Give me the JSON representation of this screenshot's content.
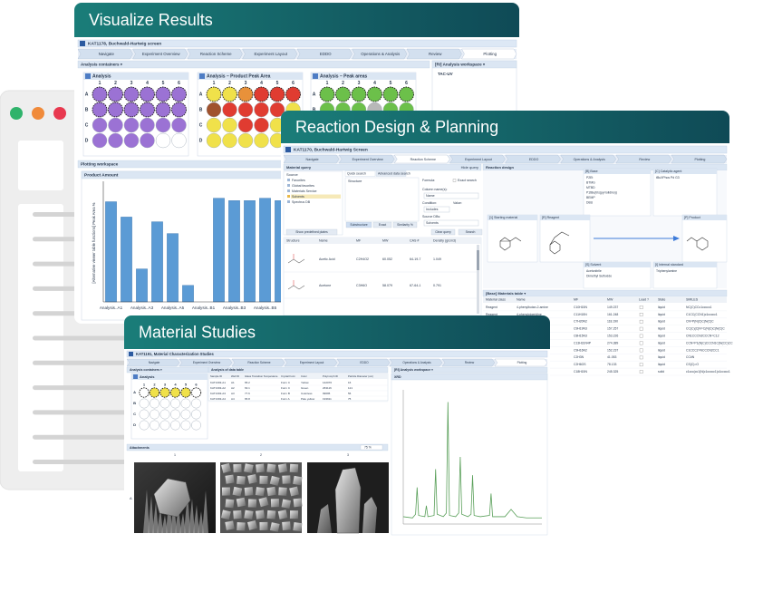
{
  "palette": {
    "p": "#9b72d4",
    "y": "#f0e14a",
    "o": "#e8913a",
    "r": "#e03c31",
    "b": "#a0522d",
    "g": "#6cc04a",
    "k": "#b8b8b8",
    "w": "#ffffff"
  },
  "cards": [
    {
      "title": "Visualize Results",
      "screen": "KAT1178, Buchwald-Hartwig screen",
      "steps": [
        "Navigate",
        "Experiment Overview",
        "Reaction Scheme",
        "Experiment Layout",
        "EDDO",
        "Operations & Analysis",
        "Review",
        "Plotting"
      ],
      "active_step": 7,
      "containers": "Analysis containers ▾",
      "workspace": "[RI] Analysis workspace ▾",
      "workspace_item": "TAC-UV",
      "columns": [
        "1",
        "2",
        "3",
        "4",
        "5",
        "6"
      ],
      "rows": [
        "A",
        "B",
        "C",
        "D"
      ],
      "plates": [
        {
          "title": "Analysis",
          "wells": [
            "pppppp",
            "pppppp",
            "pppppp",
            "pppp.."
          ],
          "selected": [
            0,
            1
          ]
        },
        {
          "title": "Analysis – Product Peak Area",
          "wells": [
            "yyorrr",
            "brrrry",
            "yyrryr",
            "yyyyyy"
          ],
          "selected": [
            0
          ]
        },
        {
          "title": "Analysis – Peak areas",
          "wells": [
            "gggggg",
            "gggkgg",
            "ggkkkk",
            "kkkkkk"
          ],
          "selected": [
            0
          ]
        }
      ],
      "plotting": "Plotting workspace",
      "chart_data": {
        "type": "bar",
        "title": "Product Amount",
        "y_label": "[Alternative viewer table functions] Peak Area %",
        "categories": [
          "Analysis..A1",
          null,
          "Analysis..A3",
          null,
          "Analysis..A5",
          null,
          "Analysis..B1",
          null,
          "Analysis..B3",
          null,
          "Analysis..B5",
          null,
          "Analysis..C1"
        ],
        "values": [
          85,
          72,
          28,
          68,
          58,
          14,
          0,
          88,
          86,
          86,
          88,
          86,
          68
        ],
        "color": "#5b9bd5",
        "ylim": [
          0,
          100
        ]
      }
    },
    {
      "title": "Reaction Design & Planning",
      "screen": "KAT1170, Buchwald-Hartwig Screen",
      "steps": [
        "Navigate",
        "Experiment Overview",
        "Reaction Scheme",
        "Experiment Layout",
        "EDDO",
        "Operations & Analysis",
        "Review",
        "Plotting"
      ],
      "active_step": 2,
      "query": {
        "header": "Material query",
        "hide": "Hide query",
        "tabs": [
          "Quick search",
          "Advanced data search"
        ],
        "source_label": "Source",
        "sources": [
          "Favorites",
          "Global favorites",
          "Materials Service",
          "Solvents",
          "Spectrus DB"
        ],
        "structure": "Structure",
        "form": [
          "Formula:",
          "Exact search",
          "Column name(s):",
          "Name",
          "Condition:",
          "Value:",
          "Includes",
          "Source DBs:",
          "Solvents"
        ],
        "buttons": [
          "Substructure",
          "Exact",
          "Similarity %"
        ],
        "actions": [
          "Clear query",
          "Search"
        ],
        "predefined": "Show predefined plates",
        "table": {
          "columns": [
            "Structure",
            "Name",
            "MF",
            "MW",
            "CAS #",
            "Density (g/cm3)"
          ],
          "rows": [
            [
              "Acetic Acid",
              "C2H4O2",
              "60.052",
              "64-19-7",
              "1.049"
            ],
            [
              "Acetone",
              "C3H6O",
              "58.079",
              "67-64-1",
              "0.791"
            ]
          ]
        }
      },
      "design": {
        "header": "Reaction design",
        "boxes": [
          {
            "title": "[B] Base",
            "items": [
              "P2Et",
              "BTMG",
              "MTBD",
              "P1tBu(tris(pyrrolidino))",
              "BEMP",
              "DBU"
            ]
          },
          {
            "title": "[C] Catalytic agent",
            "items": [
              "tBuXPhos Pd G3"
            ]
          },
          {
            "title": "[1] Starting material"
          },
          {
            "title": "[R] Reagent"
          },
          {
            "title": "[P] Product"
          },
          {
            "title": "[S] Solvent",
            "items": [
              "Acetonitrile",
              "Dimethyl Sulfoxide"
            ]
          },
          {
            "title": "[I] Internal standard",
            "items": [
              "Triphenylamine"
            ]
          }
        ]
      },
      "materials": {
        "header": "[Base] Materials table ▾",
        "columns": [
          "Material class",
          "Name",
          "MF",
          "MW",
          "Load ?",
          "State",
          "SMILES"
        ],
        "rows": [
          [
            "Reagent",
            "4-phenylbutan-2-amine",
            "C10H15N",
            "149.237",
            "liquid",
            "NC(C)CCc1ccccc1"
          ],
          [
            "Reagent",
            "4-phenylpiperidine",
            "C11H15N",
            "161.248",
            "liquid",
            "C1CC(CCN1)c1ccccc1"
          ],
          [
            "Base",
            "P2Et",
            "C7H20N2",
            "118.190",
            "liquid",
            "CN=P(N(C)C)N(C)C"
          ],
          [
            "Base",
            "BTMG",
            "C9H19N3",
            "157.257",
            "liquid",
            "CC(C)(C)N=C(N(C)C)N(C)C"
          ],
          [
            "Base",
            "MTBD",
            "C8H15N3",
            "153.226",
            "liquid",
            "CN1CCCN2CCCN=C12"
          ],
          [
            "Base",
            "BEMP",
            "C13H31N4P",
            "274.389",
            "liquid",
            "CCN=P1(N(C)CCCN1C)N(CC)CC"
          ],
          [
            "Base",
            "DBU",
            "C9H16N2",
            "152.237",
            "liquid",
            "C1CCC2=NCCCN2CC1"
          ],
          [
            "Solvent",
            "Acetonitrile",
            "C2H3N",
            "41.053",
            "liquid",
            "CC#N"
          ],
          [
            "Solvent",
            "Dimethyl Sulfoxide",
            "C2H6OS",
            "78.133",
            "liquid",
            "CS(C)=O"
          ],
          [
            "Standard",
            "Triphenylamine",
            "C18H15N",
            "245.325",
            "solid",
            "c1ccc(cc1)N(c1ccccc1)c1ccccc1"
          ]
        ]
      }
    },
    {
      "title": "Material Studies",
      "screen": "KAT1191, Material Characterization Studies",
      "steps": [
        "Navigate",
        "Experiment Overview",
        "Reaction Scheme",
        "Experiment Layout",
        "EDDO",
        "Operations & Analysis",
        "Review",
        "Plotting"
      ],
      "active_step": 7,
      "containers": "Analysis containers ▾",
      "table_header": "Analysis of data table",
      "workspace": "[RI] Analysis workspace ▾",
      "columns": [
        "1",
        "2",
        "3",
        "4",
        "5",
        "6"
      ],
      "rows": [
        "A",
        "B",
        "C",
        "D"
      ],
      "plates": [
        {
          "title": "Analysis",
          "wells": [
            "wyyyyw",
            "wwwwww",
            "wwwwww",
            "wwwwww"
          ],
          "selected": [
            0
          ]
        }
      ],
      "table": {
        "columns": [
          "Sample ID",
          "Well ID",
          "Glass Transition Temperature",
          "Crystal Form",
          "Color",
          "Polymorph ID",
          "Particle Diameter (um)"
        ],
        "rows": [
          [
            "KAT1393-A1",
            "A1",
            "65.2",
            "Form C",
            "Yellow",
            "142076",
            "16"
          ],
          [
            "KAT1393-A2",
            "A2",
            "63.1",
            "Form C",
            "Green",
            "263116",
            "121"
          ],
          [
            "KAT1393-A3",
            "A3",
            "77.6",
            "Form B",
            "Colorless",
            "99695",
            "56"
          ],
          [
            "KAT1393-A4",
            "A4",
            "65.8",
            "Form A",
            "Pale yellow",
            "193911",
            "75"
          ]
        ]
      },
      "attachments": "Attachments",
      "zoom": "75 %",
      "image_columns": [
        "1",
        "2",
        "3"
      ],
      "image_row": "A",
      "chart_data": {
        "type": "line",
        "title": "XRD",
        "x": [
          5,
          8,
          9,
          9.5,
          10,
          12,
          12.5,
          13,
          15,
          15.5,
          16,
          18,
          19,
          19.5,
          20,
          22,
          23,
          23.5,
          24,
          26,
          27,
          27.5,
          28,
          30,
          33,
          33.5,
          34,
          38,
          40,
          42,
          45,
          50
        ],
        "values": [
          6,
          5,
          8,
          30,
          7,
          6,
          15,
          6,
          7,
          45,
          8,
          6,
          9,
          100,
          7,
          6,
          9,
          55,
          8,
          6,
          8,
          40,
          7,
          6,
          7,
          25,
          6,
          6,
          12,
          6,
          5,
          5
        ],
        "color": "#5aa05a",
        "xlim": [
          5,
          50
        ],
        "ylim": [
          0,
          110
        ]
      }
    }
  ]
}
